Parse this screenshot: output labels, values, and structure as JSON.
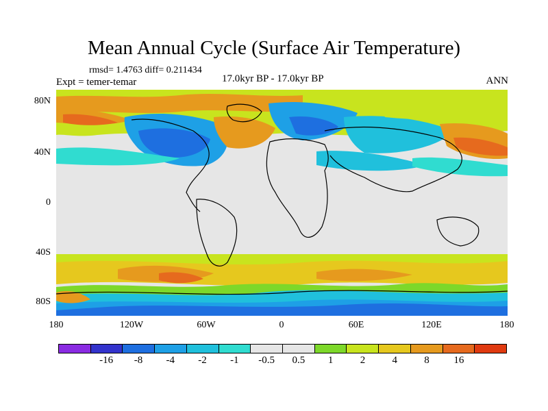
{
  "title": "Mean Annual Cycle (Surface Air Temperature)",
  "stats": "rmsd= 1.4763 diff= 0.211434",
  "experiment": "Expt = temer-temar",
  "period": "17.0kyr BP - 17.0kyr BP",
  "season": "ANN",
  "y_ticks": [
    "80N",
    "40N",
    "0",
    "40S",
    "80S"
  ],
  "x_ticks": [
    "180",
    "120W",
    "60W",
    "0",
    "60E",
    "120E",
    "180"
  ],
  "colorbar": {
    "colors": [
      "#8a2be2",
      "#3333cc",
      "#1e6fe0",
      "#1ea0e6",
      "#20c0dc",
      "#30dcd0",
      "#e6e6e6",
      "#e6e6e6",
      "#7dd82a",
      "#c8e41e",
      "#e6c81e",
      "#e69a1e",
      "#e66a1e",
      "#e03a10"
    ],
    "labels": [
      "-16",
      "-8",
      "-4",
      "-2",
      "-1",
      "-0.5",
      "0.5",
      "1",
      "2",
      "4",
      "8",
      "16"
    ]
  },
  "palette": {
    "neutral": "#e6e6e6",
    "lightgreen": "#7dd82a",
    "yellowgreen": "#c8e41e",
    "yellow": "#e6c81e",
    "orange": "#e69a1e",
    "darkorange": "#e66a1e",
    "cyan": "#30dcd0",
    "lightblue": "#20c0dc",
    "blue": "#1ea0e6",
    "deepblue": "#1e6fe0",
    "navy": "#3333cc"
  }
}
